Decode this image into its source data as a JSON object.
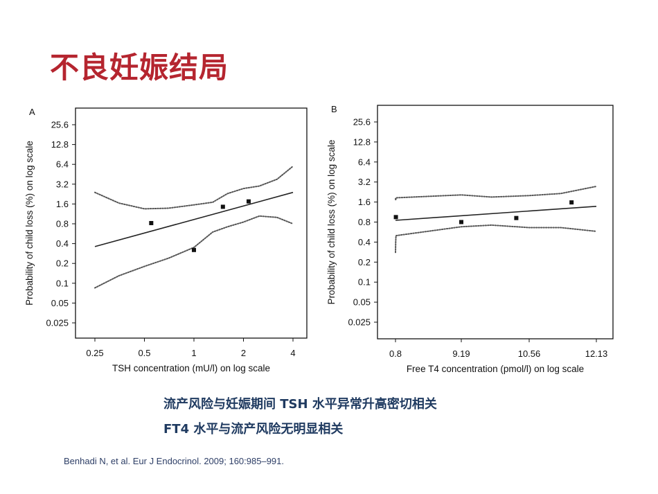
{
  "slide": {
    "title": "不良妊娠结局",
    "conclusions": [
      "流产风险与妊娠期间 TSH 水平异常升高密切相关",
      "FT4 水平与流产风险无明显相关"
    ],
    "citation": "Benhadi N, et al. Eur J Endocrinol. 2009; 160:985–991."
  },
  "colors": {
    "title": "#b5252f",
    "text": "#1f3a60",
    "ink": "#111111"
  },
  "chart_data": [
    {
      "type": "scatter",
      "panel_label": "A",
      "xlabel": "TSH concentration (mU/l) on log scale",
      "ylabel": "Probability of child loss (%) on log scale",
      "x_scale": "log",
      "y_scale": "log",
      "x_ticks": [
        0.25,
        0.5,
        1,
        2,
        4
      ],
      "x_tick_labels": [
        "0.25",
        "0.5",
        "1",
        "2",
        "4"
      ],
      "y_ticks": [
        0.025,
        0.05,
        0.1,
        0.2,
        0.4,
        0.8,
        1.6,
        3.2,
        6.4,
        12.8,
        25.6
      ],
      "y_tick_labels": [
        "0.025",
        "0.05",
        "0.1",
        "0.2",
        "0.4",
        "0.8",
        "1.6",
        "3.2",
        "6.4",
        "12.8",
        "25.6"
      ],
      "xlim": [
        0.175,
        5.3
      ],
      "ylim": [
        0.0135,
        50
      ],
      "grid": false,
      "points": [
        {
          "x": 0.55,
          "y": 0.82
        },
        {
          "x": 1.0,
          "y": 0.32
        },
        {
          "x": 1.5,
          "y": 1.45
        },
        {
          "x": 2.15,
          "y": 1.75
        }
      ],
      "fit_line": {
        "x": [
          0.25,
          4
        ],
        "y": [
          0.36,
          2.4
        ]
      },
      "ci_upper": {
        "x": [
          0.25,
          0.35,
          0.5,
          0.7,
          1.0,
          1.3,
          1.6,
          2.0,
          2.5,
          3.2,
          4.0
        ],
        "y": [
          2.4,
          1.65,
          1.35,
          1.38,
          1.55,
          1.7,
          2.3,
          2.75,
          3.0,
          3.8,
          6.0
        ]
      },
      "ci_lower": {
        "x": [
          0.25,
          0.35,
          0.5,
          0.7,
          1.0,
          1.3,
          1.6,
          2.0,
          2.5,
          3.2,
          4.0
        ],
        "y": [
          0.085,
          0.13,
          0.18,
          0.24,
          0.35,
          0.6,
          0.72,
          0.85,
          1.05,
          1.0,
          0.8
        ]
      }
    },
    {
      "type": "scatter",
      "panel_label": "B",
      "xlabel": "Free T4 concentration (pmol/l) on log scale",
      "ylabel": "Probability of child loss (%) on log scale",
      "x_scale": "log",
      "y_scale": "log",
      "x_ticks": [
        0.8,
        9.19,
        10.56,
        12.13
      ],
      "x_tick_labels": [
        "0.8",
        "9.19",
        "10.56",
        "12.13"
      ],
      "y_ticks": [
        0.025,
        0.05,
        0.1,
        0.2,
        0.4,
        0.8,
        1.6,
        3.2,
        6.4,
        12.8,
        25.6
      ],
      "y_tick_labels": [
        "0.025",
        "0.05",
        "0.1",
        "0.2",
        "0.4",
        "0.8",
        "1.6",
        "3.2",
        "6.4",
        "12.8",
        "25.6"
      ],
      "xlim": [
        0.8,
        12.13
      ],
      "ylim": [
        0.0135,
        50
      ],
      "grid": false,
      "points": [
        {
          "x": 0.85,
          "y": 0.95
        },
        {
          "x": 9.19,
          "y": 0.8
        },
        {
          "x": 10.3,
          "y": 0.92
        },
        {
          "x": 11.55,
          "y": 1.58
        }
      ],
      "fit_line": {
        "x": [
          0.8,
          12.13
        ],
        "y": [
          0.85,
          1.38
        ]
      },
      "ci_upper": {
        "x": [
          0.8,
          0.83,
          0.86,
          9.19,
          9.8,
          10.56,
          11.3,
          12.13
        ],
        "y": [
          1.8,
          1.7,
          1.85,
          2.05,
          1.9,
          2.0,
          2.15,
          2.75
        ]
      },
      "ci_lower": {
        "x": [
          0.8,
          0.83,
          0.86,
          9.19,
          9.8,
          10.56,
          11.3,
          12.13
        ],
        "y": [
          0.28,
          0.4,
          0.5,
          0.68,
          0.72,
          0.66,
          0.66,
          0.58
        ]
      }
    }
  ]
}
